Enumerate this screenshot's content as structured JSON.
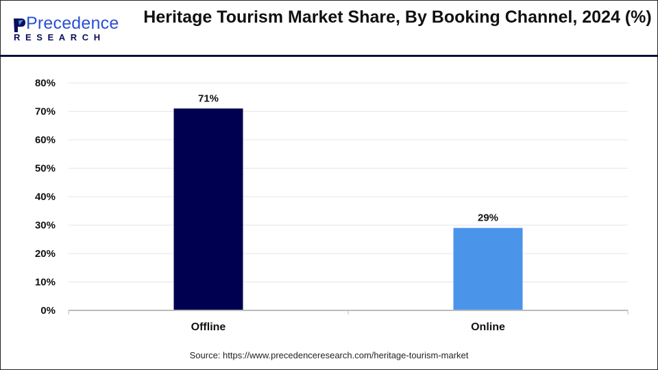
{
  "brand": {
    "logo_text_top": "Precedence",
    "logo_text_bottom": "RESEARCH"
  },
  "title": "Heritage Tourism Market Share, By Booking Channel, 2024 (%)",
  "source": "Source: https://www.precedenceresearch.com/heritage-tourism-market",
  "chart_data": {
    "type": "bar",
    "title": "Heritage Tourism Market Share, By Booking Channel, 2024 (%)",
    "categories": [
      "Offline",
      "Online"
    ],
    "values": [
      71,
      29
    ],
    "data_labels": [
      "71%",
      "29%"
    ],
    "colors": [
      "#000050",
      "#4a95ea"
    ],
    "ylim": [
      0,
      80
    ],
    "yticks": [
      0,
      10,
      20,
      30,
      40,
      50,
      60,
      70,
      80
    ],
    "ytick_labels": [
      "0%",
      "10%",
      "20%",
      "30%",
      "40%",
      "50%",
      "60%",
      "70%",
      "80%"
    ],
    "xlabel": "",
    "ylabel": "",
    "grid": true,
    "legend": "none"
  }
}
